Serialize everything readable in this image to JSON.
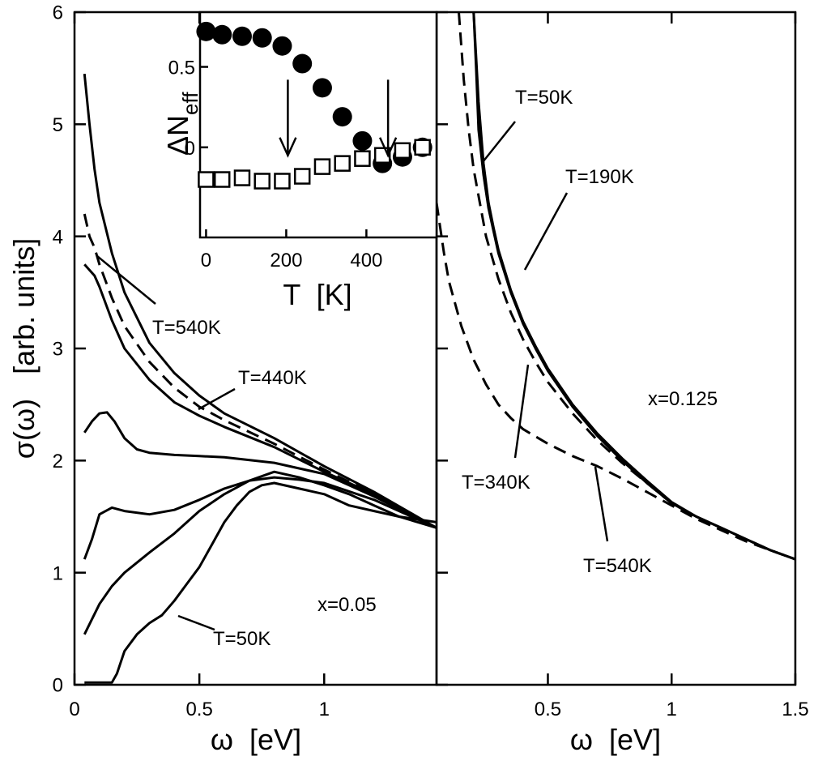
{
  "figure": {
    "ylabel": "σ(ω)   [arb. units]",
    "left_xlabel": "ω  [eV]",
    "right_xlabel": "ω  [eV]",
    "left_panel_note": "x=0.05",
    "right_panel_note": "x=0.125"
  },
  "chart_data": [
    {
      "type": "line",
      "panel": "left",
      "xlabel": "ω  [eV]",
      "ylabel": "σ(ω)   [arb. units]",
      "xlim": [
        0,
        1.45
      ],
      "ylim": [
        0,
        6
      ],
      "xticks": [
        0,
        0.5,
        1
      ],
      "xtick_labels": [
        "0",
        "0.5",
        "1"
      ],
      "yticks": [
        0,
        1,
        2,
        3,
        4,
        5,
        6
      ],
      "ytick_labels": [
        "0",
        "1",
        "2",
        "3",
        "4",
        "5",
        "6"
      ],
      "annotation": "x=0.05",
      "series": [
        {
          "name": "T=540K",
          "style": "solid",
          "x": [
            0.04,
            0.06,
            0.08,
            0.1,
            0.15,
            0.2,
            0.3,
            0.4,
            0.5,
            0.6,
            0.8,
            1.0,
            1.2,
            1.45
          ],
          "y": [
            5.45,
            5.0,
            4.6,
            4.3,
            3.85,
            3.5,
            3.05,
            2.78,
            2.58,
            2.42,
            2.2,
            1.95,
            1.72,
            1.4
          ]
        },
        {
          "name": "",
          "style": "dashed",
          "x": [
            0.04,
            0.06,
            0.08,
            0.1,
            0.15,
            0.2,
            0.3,
            0.4,
            0.5,
            0.6,
            0.8,
            1.0,
            1.2,
            1.45
          ],
          "y": [
            4.2,
            4.0,
            3.9,
            3.75,
            3.45,
            3.2,
            2.88,
            2.65,
            2.48,
            2.36,
            2.15,
            1.92,
            1.7,
            1.4
          ]
        },
        {
          "name": "T=440K",
          "style": "solid",
          "x": [
            0.04,
            0.06,
            0.08,
            0.1,
            0.15,
            0.2,
            0.3,
            0.4,
            0.5,
            0.6,
            0.8,
            1.0,
            1.2,
            1.45
          ],
          "y": [
            3.75,
            3.7,
            3.65,
            3.55,
            3.25,
            3.0,
            2.72,
            2.52,
            2.4,
            2.3,
            2.12,
            1.9,
            1.7,
            1.4
          ]
        },
        {
          "name": "",
          "style": "solid",
          "x": [
            0.04,
            0.07,
            0.1,
            0.13,
            0.16,
            0.2,
            0.25,
            0.3,
            0.4,
            0.5,
            0.6,
            0.8,
            1.0,
            1.2,
            1.45
          ],
          "y": [
            2.25,
            2.35,
            2.42,
            2.43,
            2.35,
            2.2,
            2.1,
            2.07,
            2.05,
            2.04,
            2.03,
            1.98,
            1.88,
            1.68,
            1.4
          ]
        },
        {
          "name": "",
          "style": "solid",
          "x": [
            0.04,
            0.07,
            0.1,
            0.15,
            0.2,
            0.3,
            0.4,
            0.5,
            0.6,
            0.7,
            0.8,
            0.9,
            1.0,
            1.2,
            1.45
          ],
          "y": [
            1.12,
            1.3,
            1.52,
            1.58,
            1.55,
            1.52,
            1.56,
            1.65,
            1.75,
            1.82,
            1.85,
            1.83,
            1.8,
            1.65,
            1.4
          ]
        },
        {
          "name": "",
          "style": "solid",
          "x": [
            0.04,
            0.1,
            0.15,
            0.2,
            0.3,
            0.4,
            0.5,
            0.6,
            0.7,
            0.8,
            0.9,
            1.0,
            1.1,
            1.2,
            1.3,
            1.45
          ],
          "y": [
            0.45,
            0.72,
            0.88,
            1.0,
            1.18,
            1.35,
            1.55,
            1.7,
            1.82,
            1.9,
            1.85,
            1.78,
            1.7,
            1.6,
            1.5,
            1.4
          ]
        },
        {
          "name": "T=50K",
          "style": "solid",
          "x": [
            0.04,
            0.1,
            0.15,
            0.17,
            0.2,
            0.25,
            0.3,
            0.35,
            0.4,
            0.45,
            0.5,
            0.55,
            0.6,
            0.65,
            0.7,
            0.75,
            0.8,
            0.9,
            1.0,
            1.1,
            1.2,
            1.3,
            1.45
          ],
          "y": [
            0.02,
            0.02,
            0.02,
            0.1,
            0.3,
            0.45,
            0.55,
            0.62,
            0.75,
            0.9,
            1.05,
            1.25,
            1.45,
            1.6,
            1.72,
            1.78,
            1.8,
            1.75,
            1.7,
            1.6,
            1.55,
            1.5,
            1.45
          ]
        }
      ]
    },
    {
      "type": "line",
      "panel": "right",
      "xlabel": "ω  [eV]",
      "xlim": [
        0.05,
        1.5
      ],
      "ylim": [
        0,
        6
      ],
      "xticks": [
        0.5,
        1,
        1.5
      ],
      "xtick_labels": [
        "0.5",
        "1",
        "1.5"
      ],
      "annotation": "x=0.125",
      "series": [
        {
          "name": "T=50K",
          "style": "solid",
          "x": [
            0.2,
            0.21,
            0.22,
            0.24,
            0.26,
            0.28,
            0.3,
            0.35,
            0.4,
            0.45,
            0.5,
            0.6,
            0.7,
            0.8,
            0.9,
            1.0,
            1.1,
            1.2,
            1.3,
            1.4,
            1.5
          ],
          "y": [
            6.0,
            5.5,
            4.95,
            4.55,
            4.25,
            4.05,
            3.85,
            3.5,
            3.22,
            3.0,
            2.8,
            2.48,
            2.22,
            2.0,
            1.8,
            1.62,
            1.5,
            1.4,
            1.3,
            1.2,
            1.12
          ]
        },
        {
          "name": "T=190K",
          "style": "solid",
          "x": [
            0.2,
            0.22,
            0.24,
            0.26,
            0.28,
            0.3,
            0.35,
            0.4,
            0.45,
            0.5,
            0.6,
            0.7,
            0.8,
            0.9,
            1.0,
            1.1,
            1.2,
            1.3,
            1.4,
            1.5
          ],
          "y": [
            6.0,
            5.2,
            4.65,
            4.3,
            4.08,
            3.88,
            3.52,
            3.24,
            3.02,
            2.82,
            2.5,
            2.24,
            2.02,
            1.82,
            1.63,
            1.5,
            1.4,
            1.3,
            1.2,
            1.12
          ]
        },
        {
          "name": "T=340K",
          "style": "dashed",
          "x": [
            0.14,
            0.16,
            0.18,
            0.2,
            0.25,
            0.3,
            0.35,
            0.4,
            0.45,
            0.5,
            0.6,
            0.7,
            0.8,
            0.9,
            1.0,
            1.1,
            1.2,
            1.3,
            1.4,
            1.5
          ],
          "y": [
            6.0,
            5.4,
            4.95,
            4.6,
            4.0,
            3.62,
            3.32,
            3.08,
            2.88,
            2.7,
            2.42,
            2.18,
            1.98,
            1.8,
            1.62,
            1.5,
            1.4,
            1.3,
            1.2,
            1.12
          ]
        },
        {
          "name": "T=540K",
          "style": "dashed",
          "x": [
            0.05,
            0.08,
            0.1,
            0.15,
            0.2,
            0.25,
            0.3,
            0.35,
            0.4,
            0.5,
            0.6,
            0.7,
            0.8,
            0.9,
            1.0,
            1.1,
            1.2,
            1.3,
            1.4,
            1.5
          ],
          "y": [
            4.3,
            3.85,
            3.6,
            3.2,
            2.9,
            2.68,
            2.5,
            2.38,
            2.28,
            2.15,
            2.04,
            1.95,
            1.84,
            1.72,
            1.6,
            1.48,
            1.38,
            1.28,
            1.2,
            1.12
          ]
        }
      ]
    },
    {
      "type": "scatter",
      "panel": "inset",
      "xlabel": "T  [K]",
      "ylabel": "ΔN",
      "ylabel_subscript": "eff",
      "xlim": [
        -15,
        575
      ],
      "ylim": [
        -0.56,
        0.84
      ],
      "xticks": [
        0,
        200,
        400
      ],
      "xtick_labels": [
        "0",
        "200",
        "400"
      ],
      "yticks": [
        0,
        0.5
      ],
      "ytick_labels": [
        "0",
        "0.5"
      ],
      "series": [
        {
          "name": "",
          "marker": "filled-circle",
          "x": [
            0,
            40,
            90,
            140,
            190,
            240,
            290,
            340,
            390,
            440,
            490,
            540
          ],
          "y": [
            0.72,
            0.7,
            0.69,
            0.68,
            0.63,
            0.52,
            0.37,
            0.19,
            0.04,
            -0.1,
            -0.06,
            -0.0
          ]
        },
        {
          "name": "",
          "marker": "open-square",
          "x": [
            0,
            40,
            90,
            140,
            190,
            240,
            290,
            340,
            390,
            440,
            490,
            540
          ],
          "y": [
            -0.2,
            -0.2,
            -0.19,
            -0.21,
            -0.21,
            -0.18,
            -0.12,
            -0.1,
            -0.07,
            -0.05,
            -0.02,
            -0.0
          ]
        }
      ],
      "arrows_at_T": [
        200,
        450
      ]
    }
  ]
}
